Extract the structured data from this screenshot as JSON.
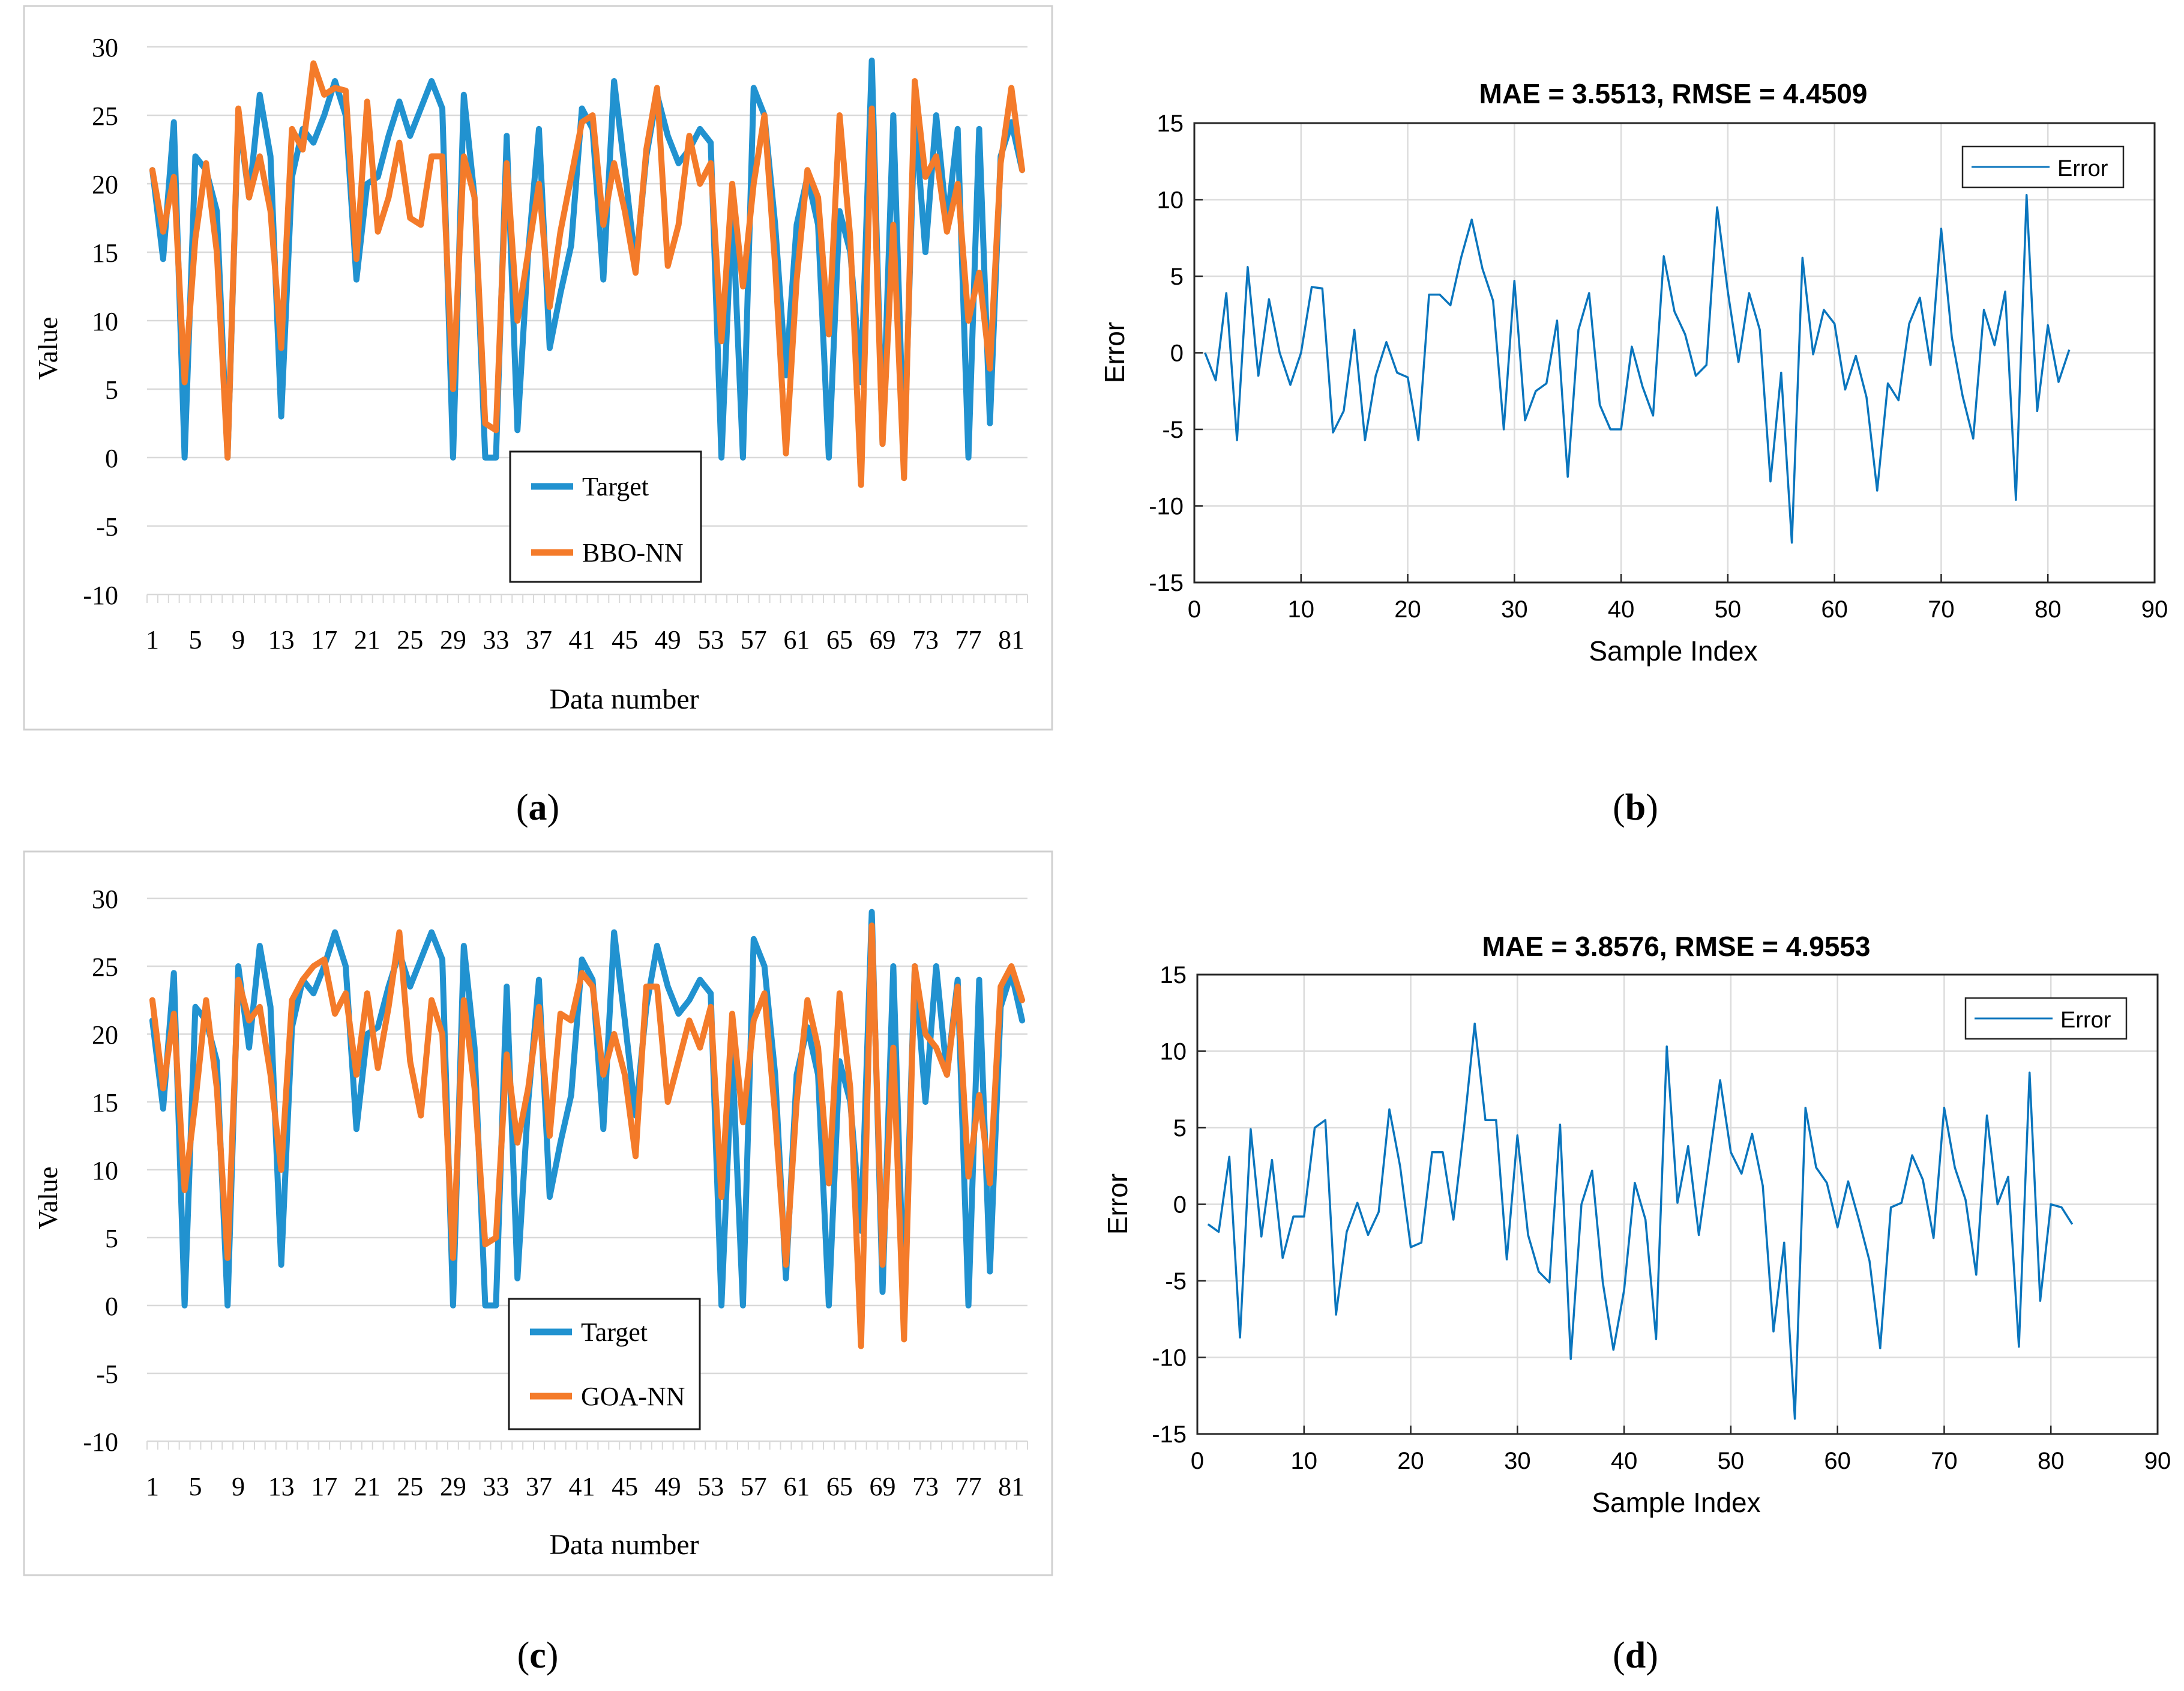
{
  "panels": [
    {
      "id": "a",
      "caption_letter": "a"
    },
    {
      "id": "b",
      "caption_letter": "b"
    },
    {
      "id": "c",
      "caption_letter": "c"
    },
    {
      "id": "d",
      "caption_letter": "d"
    }
  ],
  "colors": {
    "target": "#2192d0",
    "model": "#f47b2a",
    "error": "#0a75bd",
    "excel_grid": "#d9d9d9",
    "excel_frame": "#d0d0d0",
    "matlab_grid": "#dcdcdc"
  },
  "chart_data": [
    {
      "id": "a",
      "type": "line",
      "title": "",
      "xlabel": "Data number",
      "ylabel": "Value",
      "ylim": [
        -10,
        30
      ],
      "yticks": [
        -10,
        -5,
        0,
        5,
        10,
        15,
        20,
        25,
        30
      ],
      "xtick_labels": [
        "1",
        "5",
        "9",
        "13",
        "17",
        "21",
        "25",
        "29",
        "33",
        "37",
        "41",
        "45",
        "49",
        "53",
        "57",
        "61",
        "65",
        "69",
        "73",
        "77",
        "81"
      ],
      "grid": "horizontal",
      "legend_position": "bottom-center",
      "series": [
        {
          "name": "Target",
          "values": [
            21,
            14.5,
            24.5,
            0,
            22,
            21,
            18,
            0,
            25,
            19,
            26.5,
            22,
            3,
            20.5,
            24,
            23,
            25,
            27.5,
            25,
            13,
            20,
            20.5,
            23.5,
            26,
            23.5,
            25.5,
            27.5,
            25.5,
            0,
            26.5,
            19,
            0,
            0,
            23.5,
            2,
            15,
            24,
            8,
            12,
            15.5,
            25.5,
            24,
            13,
            27.5,
            21,
            14,
            22,
            26.5,
            23.5,
            21.5,
            22.5,
            24,
            23,
            0,
            18.5,
            0,
            27,
            25,
            17,
            6,
            17,
            20.5,
            17,
            0,
            18,
            15,
            5.5,
            29,
            1,
            25,
            0,
            25,
            15,
            25,
            17,
            24,
            0,
            24,
            2.5,
            22,
            24.5,
            21
          ]
        },
        {
          "name": "BBO-NN",
          "values": [
            21,
            16.5,
            20.5,
            5.5,
            16,
            21.5,
            15,
            0,
            25.5,
            19,
            22,
            18,
            8,
            24,
            22.5,
            28.8,
            26.5,
            27,
            26.8,
            14.5,
            26,
            16.5,
            19,
            23,
            17.5,
            17,
            22,
            22,
            5,
            22,
            19,
            2.5,
            2,
            21.5,
            10,
            15,
            20,
            11,
            16.5,
            20.5,
            24.5,
            25,
            17,
            21.5,
            18,
            13.5,
            22.5,
            27,
            14,
            17,
            23.5,
            20,
            21.5,
            8.5,
            20,
            12.5,
            20,
            25,
            14,
            0.3,
            13,
            21,
            19,
            9,
            25,
            16,
            -2,
            25.5,
            1,
            17,
            -1.5,
            27.5,
            20.5,
            22,
            16.5,
            20,
            10,
            13.5,
            6.5,
            21.5,
            27,
            21
          ]
        }
      ]
    },
    {
      "id": "b",
      "type": "line",
      "title": "MAE = 3.5513, RMSE = 4.4509",
      "xlabel": "Sample Index",
      "ylabel": "Error",
      "xlim": [
        0,
        90
      ],
      "ylim": [
        -15,
        15
      ],
      "xticks": [
        0,
        10,
        20,
        30,
        40,
        50,
        60,
        70,
        80,
        90
      ],
      "yticks": [
        -15,
        -10,
        -5,
        0,
        5,
        10,
        15
      ],
      "grid": "on",
      "legend_position": "top-right",
      "series": [
        {
          "name": "Error",
          "values": [
            0,
            -1.8,
            3.9,
            -5.7,
            5.6,
            -1.5,
            3.5,
            0,
            -2.1,
            0,
            4.3,
            4.2,
            -5.2,
            -3.8,
            1.5,
            -5.7,
            -1.5,
            0.7,
            -1.3,
            -1.6,
            -5.7,
            3.8,
            3.8,
            3.1,
            6.2,
            8.7,
            5.5,
            3.4,
            -5,
            4.7,
            -4.4,
            -2.5,
            -2,
            2.1,
            -8.1,
            1.5,
            3.9,
            -3.4,
            -5,
            -5,
            0.4,
            -2.2,
            -4.1,
            6.3,
            2.7,
            1.2,
            -1.5,
            -0.8,
            9.5,
            4,
            -0.6,
            3.9,
            1.5,
            -8.4,
            -1.3,
            -12.4,
            6.2,
            -0.1,
            2.8,
            1.9,
            -2.4,
            -0.2,
            -2.9,
            -9,
            -2,
            -3.1,
            1.9,
            3.6,
            -0.8,
            8.1,
            1,
            -2.8,
            -5.6,
            2.8,
            0.5,
            4,
            -9.6,
            10.3,
            -3.8,
            1.8,
            -1.9,
            0.2
          ]
        }
      ]
    },
    {
      "id": "c",
      "type": "line",
      "title": "",
      "xlabel": "Data number",
      "ylabel": "Value",
      "ylim": [
        -10,
        30
      ],
      "yticks": [
        -10,
        -5,
        0,
        5,
        10,
        15,
        20,
        25,
        30
      ],
      "xtick_labels": [
        "1",
        "5",
        "9",
        "13",
        "17",
        "21",
        "25",
        "29",
        "33",
        "37",
        "41",
        "45",
        "49",
        "53",
        "57",
        "61",
        "65",
        "69",
        "73",
        "77",
        "81"
      ],
      "grid": "horizontal",
      "legend_position": "bottom-center",
      "series": [
        {
          "name": "Target",
          "values": [
            21,
            14.5,
            24.5,
            0,
            22,
            21,
            18,
            0,
            25,
            19,
            26.5,
            22,
            3,
            20.5,
            24,
            23,
            25,
            27.5,
            25,
            13,
            20,
            20.5,
            23.5,
            26,
            23.5,
            25.5,
            27.5,
            25.5,
            0,
            26.5,
            19,
            0,
            0,
            23.5,
            2,
            15,
            24,
            8,
            12,
            15.5,
            25.5,
            24,
            13,
            27.5,
            21,
            14,
            22,
            26.5,
            23.5,
            21.5,
            22.5,
            24,
            23,
            0,
            18.5,
            0,
            27,
            25,
            17,
            2,
            17,
            20.5,
            17,
            0,
            18,
            15,
            5.5,
            29,
            1,
            25,
            0,
            25,
            15,
            25,
            17,
            24,
            0,
            24,
            2.5,
            22,
            24.5,
            21
          ]
        },
        {
          "name": "GOA-NN",
          "values": [
            22.5,
            16,
            21.5,
            8.5,
            15,
            22.5,
            16,
            3.5,
            24,
            21,
            22,
            17,
            10,
            22.5,
            24,
            25,
            25.5,
            21.5,
            23,
            17,
            23,
            17.5,
            22,
            27.5,
            18,
            14,
            22.5,
            20,
            3.5,
            22.5,
            16,
            4.5,
            5,
            18.5,
            12,
            16,
            22,
            12.5,
            21.5,
            21,
            24.5,
            23.5,
            17,
            20,
            17,
            11,
            23.5,
            23.5,
            15,
            18,
            21,
            19,
            22,
            8,
            21.5,
            13.5,
            21,
            23,
            14,
            3,
            15,
            22.5,
            19,
            9,
            23,
            16,
            -3,
            28,
            3,
            19,
            -2.5,
            25,
            20,
            19,
            17,
            23.5,
            9.5,
            15.5,
            9,
            23.5,
            25,
            22.5
          ]
        }
      ]
    },
    {
      "id": "d",
      "type": "line",
      "title": "MAE = 3.8576, RMSE = 4.9553",
      "xlabel": "Sample Index",
      "ylabel": "Error",
      "xlim": [
        0,
        90
      ],
      "ylim": [
        -15,
        15
      ],
      "xticks": [
        0,
        10,
        20,
        30,
        40,
        50,
        60,
        70,
        80,
        90
      ],
      "yticks": [
        -15,
        -10,
        -5,
        0,
        5,
        10,
        15
      ],
      "grid": "on",
      "legend_position": "top-right",
      "series": [
        {
          "name": "Error",
          "values": [
            -1.3,
            -1.8,
            3.1,
            -8.7,
            4.9,
            -2.1,
            2.9,
            -3.5,
            -0.8,
            -0.8,
            5,
            5.5,
            -7.2,
            -1.8,
            0.1,
            -2,
            -0.5,
            6.2,
            2.5,
            -2.8,
            -2.5,
            3.4,
            3.4,
            -1,
            5,
            11.8,
            5.5,
            5.5,
            -3.6,
            4.5,
            -2,
            -4.4,
            -5.1,
            5.2,
            -10.1,
            0,
            2.2,
            -5.1,
            -9.5,
            -5.6,
            1.4,
            -1,
            -8.8,
            10.3,
            0.1,
            3.8,
            -2,
            3,
            8.1,
            3.4,
            2,
            4.6,
            1.2,
            -8.3,
            -2.5,
            -14,
            6.3,
            2.4,
            1.4,
            -1.5,
            1.5,
            -1,
            -3.7,
            -9.4,
            -0.2,
            0.1,
            3.2,
            1.6,
            -2.2,
            6.3,
            2.4,
            0.3,
            -4.6,
            5.8,
            0,
            1.8,
            -9.3,
            8.6,
            -6.3,
            0,
            -0.2,
            -1.3
          ]
        }
      ]
    }
  ]
}
